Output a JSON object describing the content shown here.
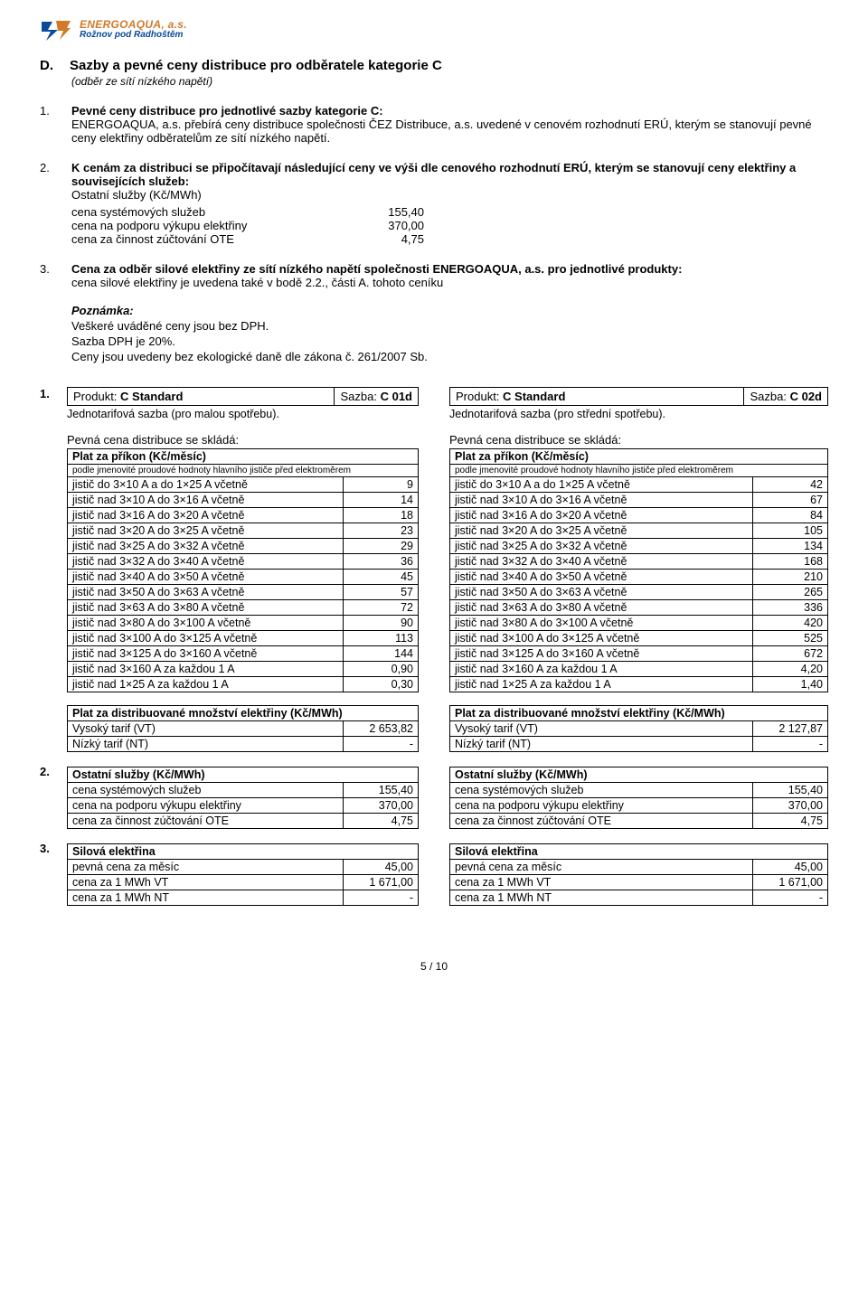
{
  "logo": {
    "line1": "ENERGOAQUA, a.s.",
    "line2": "Rožnov pod Radhoštěm"
  },
  "header": {
    "letter": "D.",
    "title": "Sazby a pevné ceny distribuce pro odběratele kategorie C",
    "subtitle": "(odběr ze sítí nízkého napětí)"
  },
  "p1": {
    "num": "1.",
    "lead": "Pevné ceny distribuce pro jednotlivé sazby kategorie C:",
    "text": "ENERGOAQUA, a.s. přebírá ceny distribuce společnosti ČEZ Distribuce, a.s. uvedené v cenovém rozhodnutí ERÚ, kterým se stanovují pevné ceny elektřiny odběratelům ze sítí nízkého napětí."
  },
  "p2": {
    "num": "2.",
    "text": "K cenám za distribuci se připočítavají následující ceny ve výši dle cenového rozhodnutí ERÚ, kterým se stanovují ceny elektřiny a souvisejících služeb:",
    "subtitle": "Ostatní služby (Kč/MWh)",
    "rows": [
      {
        "label": "cena systémových služeb",
        "value": "155,40"
      },
      {
        "label": "cena na podporu výkupu elektřiny",
        "value": "370,00"
      },
      {
        "label": "cena za činnost zúčtování OTE",
        "value": "4,75"
      }
    ]
  },
  "p3": {
    "num": "3.",
    "lead": "Cena za odběr silové elektřiny ze sítí nízkého napětí společnosti ENERGOAQUA, a.s. pro jednotlivé produkty:",
    "text": "cena silové elektřiny je uvedena také v bodě 2.2., části A. tohoto ceníku"
  },
  "note": {
    "head": "Poznámka:",
    "l1": "Veškeré uváděné ceny jsou bez DPH.",
    "l2": "Sazba DPH je 20%.",
    "l3": "Ceny jsou uvedeny bez ekologické daně dle zákona č. 261/2007 Sb."
  },
  "prod": {
    "n1": "1.",
    "label": "Produkt:",
    "name": "C Standard",
    "szLabel": "Sazba:",
    "left": {
      "sz": "C 01d",
      "desc": "Jednotarifová sazba (pro malou spotřebu)."
    },
    "right": {
      "sz": "C 02d",
      "desc": "Jednotarifová sazba (pro střední spotřebu)."
    },
    "intro": "Pevná cena distribuce se skládá:",
    "plat_hdr": "Plat za příkon (Kč/měsíc)",
    "plat_note": "podle jmenovité proudové hodnoty hlavního jističe před elektroměrem",
    "rows_labels": [
      "jistič do 3×10 A a do 1×25 A včetně",
      "jistič nad 3×10 A do 3×16 A včetně",
      "jistič nad 3×16 A do 3×20 A včetně",
      "jistič nad 3×20 A do 3×25 A včetně",
      "jistič nad 3×25 A do 3×32 A včetně",
      "jistič nad 3×32 A do 3×40 A včetně",
      "jistič nad 3×40 A do 3×50 A včetně",
      "jistič nad 3×50 A do 3×63 A včetně",
      "jistič nad 3×63 A do 3×80 A včetně",
      "jistič nad 3×80 A do 3×100 A včetně",
      "jistič nad 3×100 A do 3×125 A včetně",
      "jistič nad 3×125 A do 3×160 A včetně",
      "jistič nad 3×160 A za každou 1 A",
      "jistič nad 1×25 A za každou 1 A"
    ],
    "left_vals": [
      "9",
      "14",
      "18",
      "23",
      "29",
      "36",
      "45",
      "57",
      "72",
      "90",
      "113",
      "144",
      "0,90",
      "0,30"
    ],
    "right_vals": [
      "42",
      "67",
      "84",
      "105",
      "134",
      "168",
      "210",
      "265",
      "336",
      "420",
      "525",
      "672",
      "4,20",
      "1,40"
    ],
    "dist_hdr": "Plat za distribuované množství elektřiny (Kč/MWh)",
    "vt_label": "Vysoký tarif (VT)",
    "nt_label": "Nízký tarif (NT)",
    "left_vt": "2 653,82",
    "left_nt": "-",
    "right_vt": "2 127,87",
    "right_nt": "-"
  },
  "sec2": {
    "num": "2.",
    "hdr": "Ostatní služby (Kč/MWh)",
    "rows": [
      {
        "label": "cena systémových služeb",
        "value": "155,40"
      },
      {
        "label": "cena na podporu výkupu elektřiny",
        "value": "370,00"
      },
      {
        "label": "cena za činnost zúčtování OTE",
        "value": "4,75"
      }
    ]
  },
  "sec3": {
    "num": "3.",
    "hdr": "Silová elektřina",
    "rows": [
      {
        "label": "pevná cena za měsíc",
        "value": "45,00"
      },
      {
        "label": "cena za 1 MWh VT",
        "value": "1 671,00"
      },
      {
        "label": "cena za 1 MWh NT",
        "value": "-"
      }
    ]
  },
  "footer": "5 / 10"
}
